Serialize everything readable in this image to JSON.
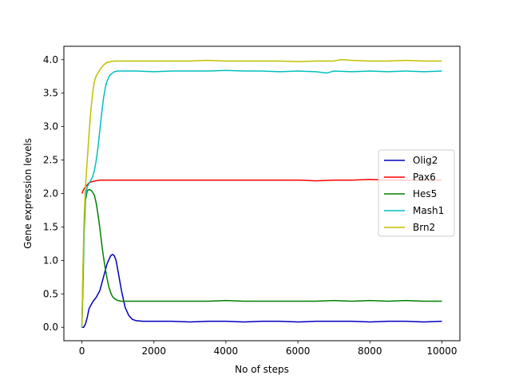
{
  "chart_data": {
    "type": "line",
    "title": "",
    "xlabel": "No of steps",
    "ylabel": "Gene expression levels",
    "xlim": [
      -500,
      10500
    ],
    "ylim": [
      -0.2,
      4.2
    ],
    "xticks": [
      0,
      2000,
      4000,
      6000,
      8000,
      10000
    ],
    "xtick_labels": [
      "0",
      "2000",
      "4000",
      "6000",
      "8000",
      "10000"
    ],
    "yticks": [
      0.0,
      0.5,
      1.0,
      1.5,
      2.0,
      2.5,
      3.0,
      3.5,
      4.0
    ],
    "ytick_labels": [
      "0.0",
      "0.5",
      "1.0",
      "1.5",
      "2.0",
      "2.5",
      "3.0",
      "3.5",
      "4.0"
    ],
    "grid": false,
    "legend_position": "center-right",
    "series": [
      {
        "name": "Olig2",
        "color": "#0000bf",
        "x": [
          0,
          50,
          100,
          150,
          200,
          300,
          400,
          500,
          600,
          700,
          800,
          850,
          900,
          950,
          1000,
          1100,
          1200,
          1300,
          1400,
          1500,
          1700,
          2000,
          2500,
          3000,
          3500,
          4000,
          4500,
          5000,
          5500,
          6000,
          6500,
          7000,
          7500,
          8000,
          8500,
          9000,
          9500,
          10000
        ],
        "y": [
          0.0,
          0.0,
          0.05,
          0.15,
          0.28,
          0.38,
          0.45,
          0.55,
          0.75,
          0.95,
          1.07,
          1.09,
          1.07,
          1.0,
          0.85,
          0.55,
          0.3,
          0.18,
          0.12,
          0.1,
          0.09,
          0.09,
          0.09,
          0.08,
          0.09,
          0.09,
          0.08,
          0.09,
          0.09,
          0.08,
          0.09,
          0.09,
          0.09,
          0.08,
          0.09,
          0.09,
          0.08,
          0.09
        ]
      },
      {
        "name": "Pax6",
        "color": "#ff0000",
        "x": [
          0,
          50,
          100,
          200,
          300,
          400,
          500,
          700,
          1000,
          1500,
          2000,
          2500,
          3000,
          3500,
          4000,
          4500,
          5000,
          5500,
          6000,
          6500,
          7000,
          7500,
          8000,
          8500,
          9000,
          9500,
          10000
        ],
        "y": [
          2.0,
          2.06,
          2.1,
          2.16,
          2.18,
          2.19,
          2.2,
          2.2,
          2.2,
          2.2,
          2.2,
          2.2,
          2.2,
          2.2,
          2.2,
          2.2,
          2.2,
          2.2,
          2.2,
          2.19,
          2.2,
          2.2,
          2.21,
          2.2,
          2.2,
          2.2,
          2.2
        ]
      },
      {
        "name": "Hes5",
        "color": "#008000",
        "x": [
          0,
          30,
          60,
          100,
          150,
          200,
          250,
          300,
          350,
          400,
          450,
          500,
          550,
          600,
          650,
          700,
          750,
          800,
          850,
          900,
          1000,
          1100,
          1200,
          1500,
          2000,
          2500,
          3000,
          3500,
          4000,
          4500,
          5000,
          5500,
          6000,
          6500,
          7000,
          7500,
          8000,
          8500,
          9000,
          9500,
          10000
        ],
        "y": [
          0.0,
          0.6,
          1.4,
          1.9,
          2.04,
          2.06,
          2.05,
          2.02,
          1.97,
          1.85,
          1.68,
          1.48,
          1.25,
          1.05,
          0.88,
          0.73,
          0.6,
          0.52,
          0.46,
          0.43,
          0.4,
          0.39,
          0.39,
          0.39,
          0.39,
          0.39,
          0.39,
          0.39,
          0.4,
          0.39,
          0.39,
          0.39,
          0.39,
          0.39,
          0.4,
          0.39,
          0.4,
          0.39,
          0.4,
          0.39,
          0.39
        ]
      },
      {
        "name": "Mash1",
        "color": "#00bfbf",
        "x": [
          0,
          30,
          60,
          100,
          150,
          200,
          250,
          300,
          350,
          400,
          450,
          500,
          550,
          600,
          650,
          700,
          750,
          800,
          850,
          900,
          1000,
          1200,
          1500,
          2000,
          2500,
          3000,
          3500,
          4000,
          4500,
          5000,
          5500,
          6000,
          6500,
          6800,
          7000,
          7500,
          8000,
          8500,
          9000,
          9500,
          10000
        ],
        "y": [
          0.0,
          0.8,
          1.5,
          1.95,
          2.1,
          2.15,
          2.2,
          2.25,
          2.35,
          2.5,
          2.7,
          2.95,
          3.2,
          3.42,
          3.58,
          3.68,
          3.74,
          3.78,
          3.8,
          3.82,
          3.83,
          3.83,
          3.83,
          3.82,
          3.83,
          3.83,
          3.83,
          3.84,
          3.83,
          3.83,
          3.82,
          3.83,
          3.82,
          3.8,
          3.83,
          3.82,
          3.83,
          3.82,
          3.83,
          3.82,
          3.83
        ]
      },
      {
        "name": "Brn2",
        "color": "#bfbf00",
        "x": [
          0,
          30,
          60,
          100,
          150,
          200,
          250,
          300,
          350,
          400,
          450,
          500,
          600,
          700,
          800,
          900,
          1000,
          1500,
          2000,
          2500,
          3000,
          3500,
          4000,
          4500,
          5000,
          5500,
          6000,
          6500,
          7000,
          7200,
          7500,
          8000,
          8500,
          9000,
          9500,
          10000
        ],
        "y": [
          0.0,
          0.9,
          1.6,
          2.1,
          2.5,
          2.9,
          3.25,
          3.5,
          3.68,
          3.76,
          3.8,
          3.85,
          3.92,
          3.96,
          3.97,
          3.98,
          3.98,
          3.98,
          3.98,
          3.98,
          3.98,
          3.99,
          3.98,
          3.98,
          3.98,
          3.98,
          3.97,
          3.98,
          3.98,
          4.0,
          3.99,
          3.98,
          3.98,
          3.99,
          3.98,
          3.98
        ]
      }
    ]
  }
}
